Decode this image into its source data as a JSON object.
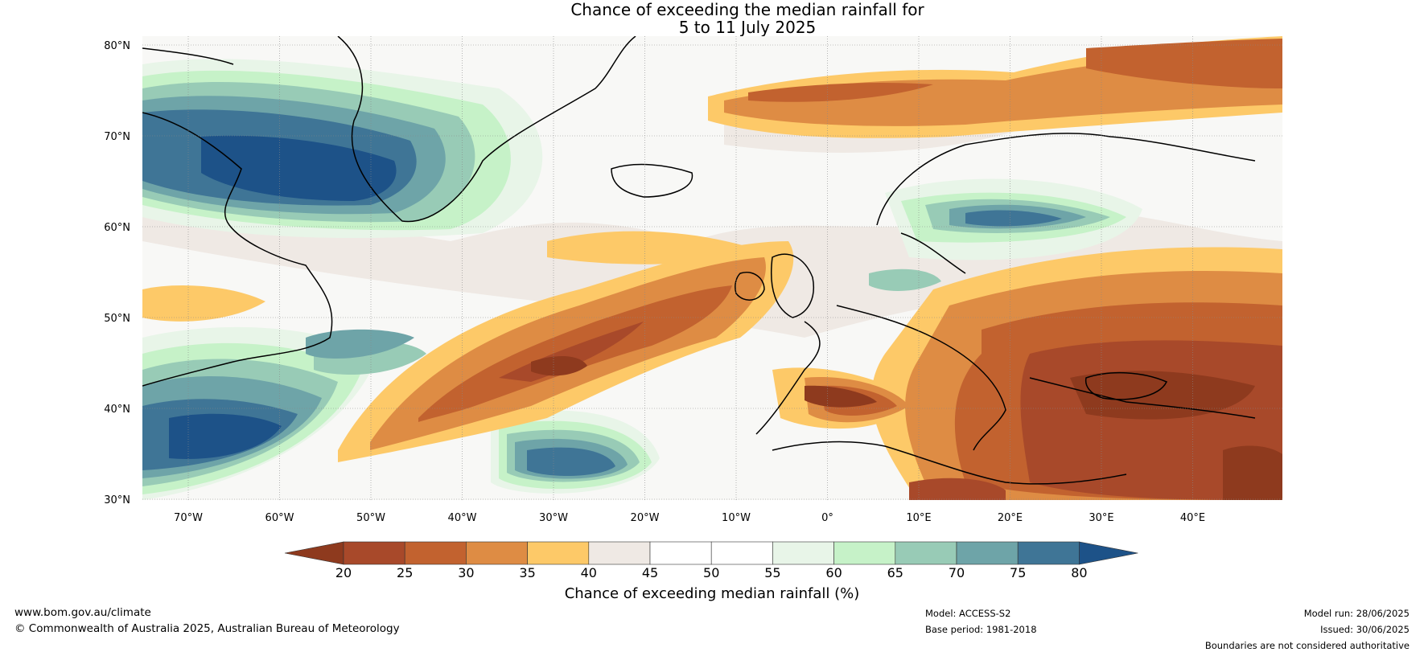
{
  "title": {
    "line1": "Chance of exceeding the median rainfall for",
    "line2": "5 to 11 July 2025"
  },
  "latitude_labels": [
    "80°N",
    "70°N",
    "60°N",
    "50°N",
    "40°N",
    "30°N"
  ],
  "longitude_labels": [
    "70°W",
    "60°W",
    "50°W",
    "40°W",
    "30°W",
    "20°W",
    "10°W",
    "0°",
    "10°E",
    "20°E",
    "30°E",
    "40°E"
  ],
  "colorbar": {
    "label": "Chance of exceeding median rainfall (%)",
    "ticks": [
      "20",
      "25",
      "30",
      "35",
      "40",
      "45",
      "50",
      "55",
      "60",
      "65",
      "70",
      "75",
      "80"
    ],
    "colors": {
      "under": "#8e3a1e",
      "bins": [
        "#a8492a",
        "#c2622f",
        "#de8c44",
        "#fdc968",
        "#efe9e4",
        "#ffffff",
        "#ffffff",
        "#e8f5e8",
        "#c6f2c8",
        "#98cbb6",
        "#6ea4a8",
        "#3f7596"
      ],
      "over": "#1d5288"
    }
  },
  "footer": {
    "website": "www.bom.gov.au/climate",
    "copyright": "© Commonwealth of Australia 2025, Australian Bureau of Meteorology",
    "model": "Model: ACCESS-S2",
    "base_period": "Base period: 1981-2018",
    "model_run": "Model run: 28/06/2025",
    "issued": "Issued: 30/06/2025",
    "disclaimer": "Boundaries are not considered authoritative"
  }
}
